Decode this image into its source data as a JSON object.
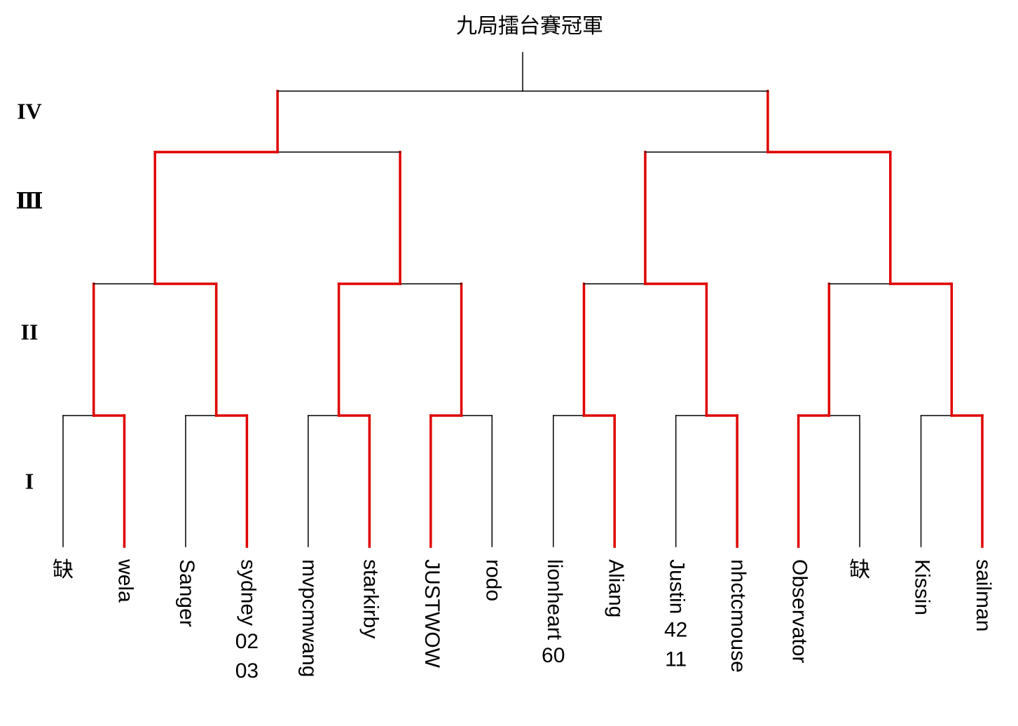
{
  "title": "九局擂台賽冠軍",
  "rounds": [
    "IV",
    "Ⅲ",
    "II",
    "I"
  ],
  "players": [
    {
      "name": "缺"
    },
    {
      "name": "wela"
    },
    {
      "name": "Sanger"
    },
    {
      "name": "sydney",
      "extra": [
        "02",
        "03"
      ]
    },
    {
      "name": "mvpcmwang"
    },
    {
      "name": "starkirby"
    },
    {
      "name": "JUSTWOW"
    },
    {
      "name": "rodo"
    },
    {
      "name": "lionheart",
      "extra": [
        "60"
      ]
    },
    {
      "name": "Aliang"
    },
    {
      "name": "Justin",
      "extra": [
        "42",
        "11"
      ]
    },
    {
      "name": "nhctcmouse"
    },
    {
      "name": "Observator"
    },
    {
      "name": "缺"
    },
    {
      "name": "Kissin"
    },
    {
      "name": "sailman"
    }
  ]
}
